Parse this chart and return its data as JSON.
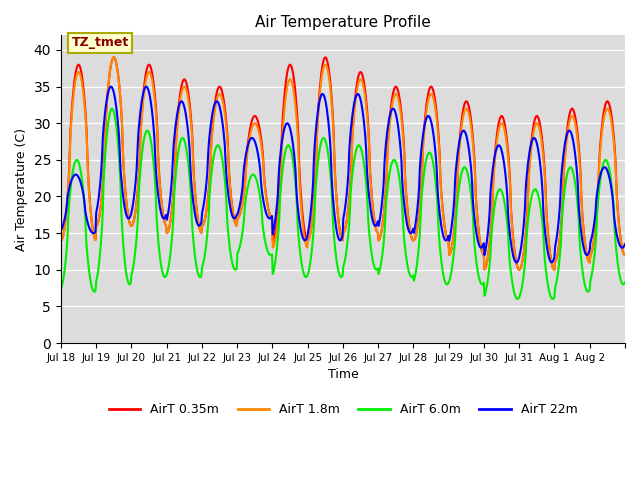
{
  "title": "Air Temperature Profile",
  "xlabel": "Time",
  "ylabel": "Air Temperature (C)",
  "ylim": [
    0,
    42
  ],
  "yticks": [
    0,
    5,
    10,
    15,
    20,
    25,
    30,
    35,
    40
  ],
  "background_color": "#dcdcdc",
  "fig_background": "#ffffff",
  "annotation_text": "TZ_tmet",
  "annotation_bg": "#ffffcc",
  "annotation_border": "#aaaa00",
  "annotation_text_color": "#880000",
  "legend_labels": [
    "AirT 0.35m",
    "AirT 1.8m",
    "AirT 6.0m",
    "AirT 22m"
  ],
  "line_colors": [
    "#ff0000",
    "#ff8800",
    "#00ee00",
    "#0000ff"
  ],
  "line_width": 1.5,
  "xtick_labels": [
    "Jul 18",
    "Jul 19",
    "Jul 20",
    "Jul 21",
    "Jul 22",
    "Jul 23",
    "Jul 24",
    "Jul 25",
    "Jul 26",
    "Jul 27",
    "Jul 28",
    "Jul 29",
    "Jul 30",
    "Jul 31",
    "Aug 1",
    "Aug 2"
  ],
  "n_days": 16,
  "points_per_day": 48,
  "red_amps": [
    24,
    23,
    22,
    21,
    19,
    14,
    24,
    25,
    22,
    21,
    21,
    21,
    21,
    21,
    21,
    21
  ],
  "red_mins": [
    14,
    16,
    16,
    15,
    16,
    17,
    14,
    14,
    15,
    14,
    14,
    12,
    10,
    10,
    11,
    12
  ],
  "orange_amps": [
    23,
    23,
    21,
    20,
    18,
    13,
    23,
    24,
    21,
    20,
    20,
    20,
    20,
    20,
    20,
    20
  ],
  "orange_mins": [
    14,
    16,
    16,
    15,
    16,
    17,
    13,
    14,
    15,
    14,
    14,
    12,
    10,
    10,
    11,
    12
  ],
  "green_amps": [
    18,
    24,
    20,
    19,
    17,
    11,
    18,
    19,
    17,
    16,
    18,
    16,
    15,
    15,
    17,
    17
  ],
  "green_mins": [
    7,
    8,
    9,
    9,
    10,
    12,
    9,
    9,
    10,
    9,
    8,
    8,
    6,
    6,
    7,
    8
  ],
  "blue_amps": [
    8,
    18,
    18,
    17,
    16,
    11,
    16,
    20,
    18,
    17,
    17,
    16,
    16,
    17,
    17,
    11
  ],
  "blue_mins": [
    15,
    17,
    17,
    16,
    17,
    17,
    14,
    14,
    16,
    15,
    14,
    13,
    11,
    11,
    12,
    13
  ],
  "blue_phase": 0.08,
  "green_phase": 0.05
}
